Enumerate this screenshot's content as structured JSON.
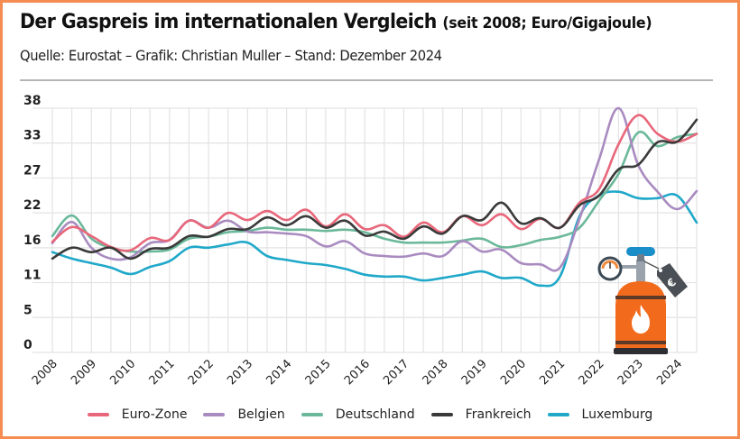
{
  "header": {
    "title": "Der Gaspreis im internationalen Vergleich",
    "title_suffix": "(seit 2008; Euro/Gigajoule)",
    "source": "Quelle: Eurostat – Grafik: Christian Muller – Stand: Dezember 2024"
  },
  "chart_data": {
    "type": "line",
    "title": "Der Gaspreis im internationalen Vergleich (seit 2008; Euro/Gigajoule)",
    "xlabel": "",
    "ylabel": "Euro/Gigajoule",
    "ylim": [
      0,
      38
    ],
    "yticks": [
      "0",
      "5",
      "11",
      "16",
      "22",
      "27",
      "33",
      "38"
    ],
    "xtick_labels": [
      "2008",
      "2009",
      "2010",
      "2011",
      "2012",
      "2013",
      "2014",
      "2015",
      "2016",
      "2017",
      "2018",
      "2019",
      "2020",
      "2021",
      "2022",
      "2023",
      "2024"
    ],
    "x": [
      "2008-S1",
      "2008-S2",
      "2009-S1",
      "2009-S2",
      "2010-S1",
      "2010-S2",
      "2011-S1",
      "2011-S2",
      "2012-S1",
      "2012-S2",
      "2013-S1",
      "2013-S2",
      "2014-S1",
      "2014-S2",
      "2015-S1",
      "2015-S2",
      "2016-S1",
      "2016-S2",
      "2017-S1",
      "2017-S2",
      "2018-S1",
      "2018-S2",
      "2019-S1",
      "2019-S2",
      "2020-S1",
      "2020-S2",
      "2021-S1",
      "2021-S2",
      "2022-S1",
      "2022-S2",
      "2023-S1",
      "2023-S2",
      "2024-S1",
      "2024-S2"
    ],
    "grid": true,
    "legend_position": "bottom",
    "series": [
      {
        "name": "Euro-Zone",
        "color": "#E8677A",
        "values": [
          17.2,
          19.5,
          18.1,
          16.4,
          15.9,
          17.8,
          17.5,
          20.5,
          19.4,
          21.7,
          20.6,
          22.0,
          20.6,
          22.2,
          19.6,
          21.5,
          19.2,
          19.8,
          18.0,
          20.2,
          18.7,
          21.2,
          19.8,
          21.5,
          19.2,
          20.8,
          19.4,
          23.3,
          25.4,
          32.4,
          36.9,
          34.0,
          32.8,
          34.0
        ]
      },
      {
        "name": "Belgien",
        "color": "#A98BC0",
        "values": [
          17.0,
          20.3,
          16.3,
          14.6,
          14.8,
          17.0,
          17.5,
          20.5,
          19.4,
          20.5,
          18.8,
          18.7,
          18.5,
          18.1,
          16.5,
          17.3,
          15.4,
          15.0,
          14.9,
          15.4,
          15.0,
          17.3,
          15.7,
          16.0,
          13.9,
          13.7,
          13.2,
          20.8,
          30.0,
          38.0,
          29.2,
          25.0,
          22.3,
          25.1
        ]
      },
      {
        "name": "Deutschland",
        "color": "#6BB89A",
        "values": [
          18.1,
          21.3,
          17.7,
          16.3,
          15.7,
          15.7,
          16.0,
          17.7,
          18.0,
          18.7,
          18.9,
          19.4,
          19.1,
          19.1,
          18.9,
          19.1,
          18.7,
          17.7,
          17.1,
          17.1,
          17.1,
          17.4,
          17.7,
          16.4,
          16.7,
          17.5,
          18.0,
          19.4,
          23.6,
          27.8,
          34.2,
          32.1,
          33.5,
          34.0
        ]
      },
      {
        "name": "Frankreich",
        "color": "#3A3A3A",
        "values": [
          14.6,
          16.3,
          15.6,
          16.3,
          14.6,
          16.1,
          16.3,
          18.1,
          18.0,
          19.2,
          19.2,
          21.0,
          19.8,
          21.2,
          19.4,
          20.5,
          18.2,
          18.8,
          17.7,
          19.6,
          18.5,
          21.2,
          20.6,
          23.3,
          20.1,
          20.9,
          19.4,
          22.9,
          24.4,
          28.5,
          29.2,
          32.7,
          32.8,
          36.2
        ]
      },
      {
        "name": "Luxemburg",
        "color": "#1FA8C9",
        "values": [
          15.6,
          14.6,
          13.9,
          13.2,
          12.2,
          13.3,
          14.2,
          16.3,
          16.3,
          16.8,
          17.1,
          15.0,
          14.4,
          13.9,
          13.6,
          13.0,
          12.1,
          11.8,
          11.8,
          11.2,
          11.6,
          12.1,
          12.6,
          11.6,
          11.6,
          10.4,
          11.8,
          21.2,
          24.4,
          25.0,
          24.0,
          24.0,
          24.4,
          20.2
        ]
      }
    ]
  },
  "decoration": {
    "icon": "gas-cylinder-with-price-tag-icon"
  }
}
